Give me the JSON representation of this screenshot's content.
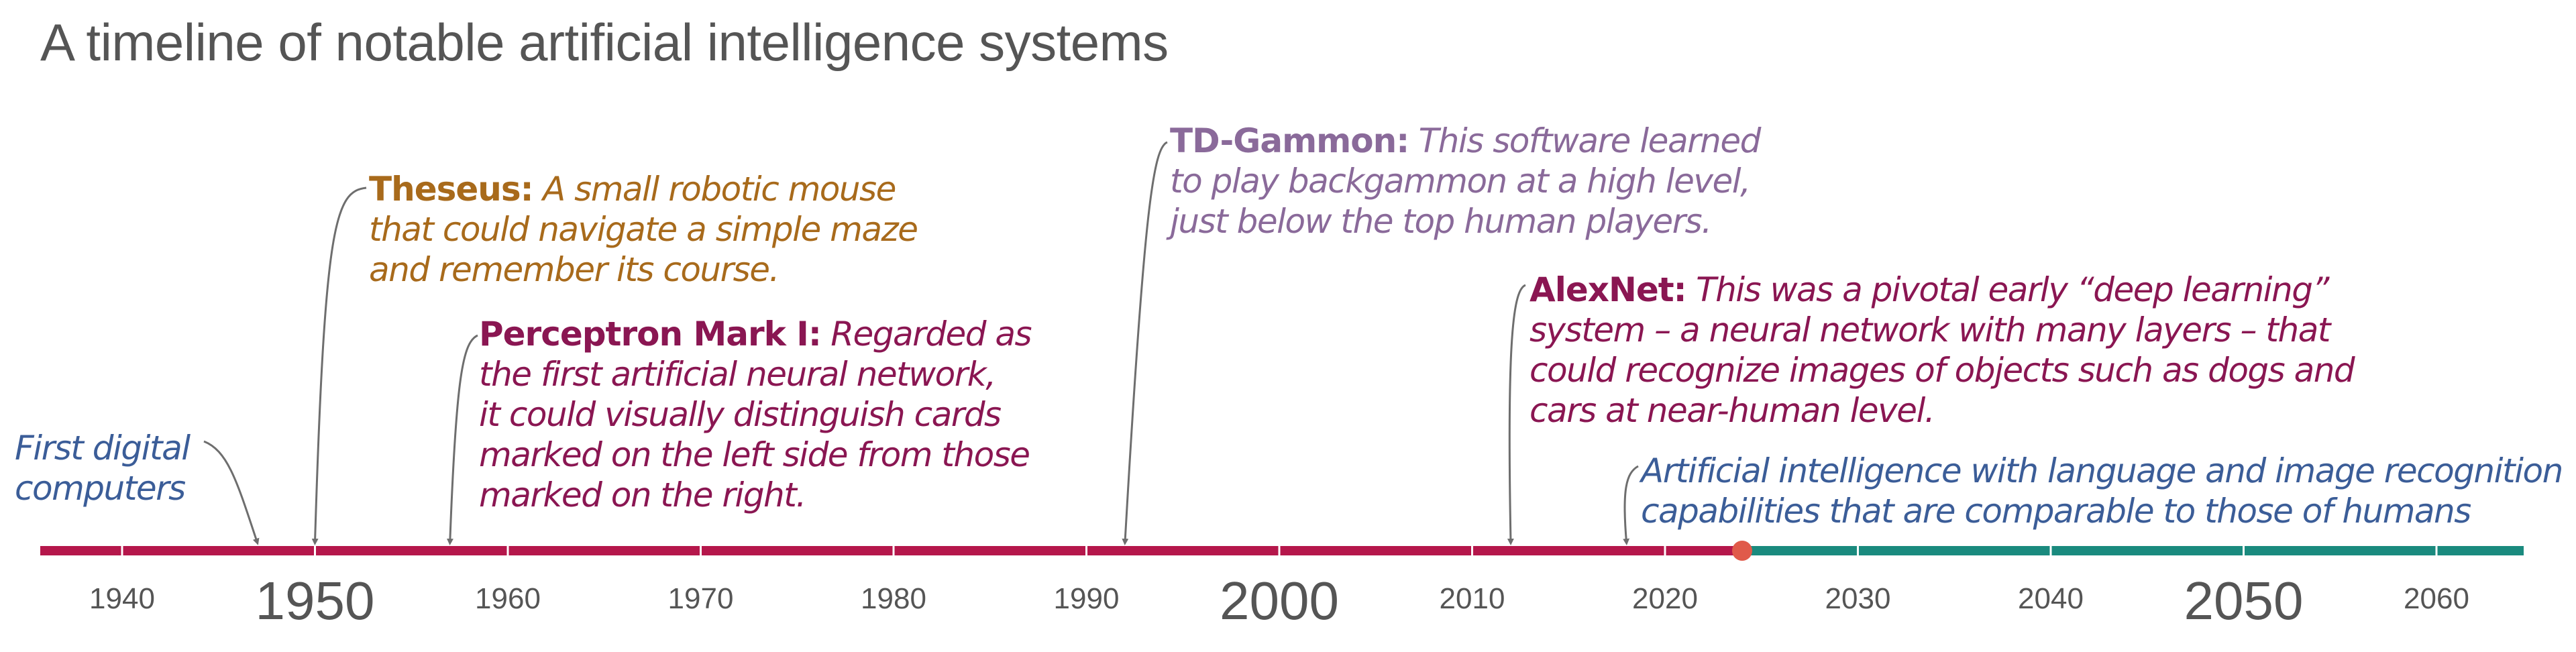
{
  "title": "A timeline of notable artificial intelligence systems",
  "colors": {
    "past": "#b5174b",
    "future": "#1a8a7e",
    "now_marker": "#e05a4a",
    "arrow": "#6e6e6e",
    "theseus": "#a86a1b",
    "perceptron": "#8a1652",
    "td_gammon": "#8a6a9a",
    "alexnet": "#8a1652",
    "blue": "#3b5d98",
    "axis_text": "#555555"
  },
  "timeline": {
    "axis_start_year": 1936,
    "axis_end_year": 2065,
    "now_year": 2024,
    "ticks": [
      {
        "year": 1940,
        "label": "1940",
        "size": "small"
      },
      {
        "year": 1950,
        "label": "1950",
        "size": "big"
      },
      {
        "year": 1960,
        "label": "1960",
        "size": "small"
      },
      {
        "year": 1970,
        "label": "1970",
        "size": "small"
      },
      {
        "year": 1980,
        "label": "1980",
        "size": "small"
      },
      {
        "year": 1990,
        "label": "1990",
        "size": "small"
      },
      {
        "year": 2000,
        "label": "2000",
        "size": "big"
      },
      {
        "year": 2010,
        "label": "2010",
        "size": "small"
      },
      {
        "year": 2020,
        "label": "2020",
        "size": "small"
      },
      {
        "year": 2030,
        "label": "2030",
        "size": "small"
      },
      {
        "year": 2040,
        "label": "2040",
        "size": "small"
      },
      {
        "year": 2050,
        "label": "2050",
        "size": "big"
      },
      {
        "year": 2060,
        "label": "2060",
        "size": "small"
      }
    ]
  },
  "annotations": {
    "first_digital": {
      "year": 1947,
      "lines": [
        "First digital",
        "computers"
      ]
    },
    "theseus": {
      "year": 1950,
      "name": "Theseus:",
      "lines": [
        "A small robotic mouse",
        "that could navigate a simple maze",
        "and remember its course."
      ]
    },
    "perceptron": {
      "year": 1957,
      "name": "Perceptron Mark I:",
      "lines": [
        "Regarded as",
        "the first artificial neural network,",
        "it could visually distinguish cards",
        "marked on the left side from those",
        "marked on the right."
      ]
    },
    "td_gammon": {
      "year": 1992,
      "name": "TD-Gammon:",
      "lines": [
        "This software learned",
        "to play backgammon at a high level,",
        "just below the top human players."
      ]
    },
    "alexnet": {
      "year": 2012,
      "name": "AlexNet:",
      "lines": [
        "This was a pivotal early “deep learning”",
        "system – a neural network with many layers – that",
        "could recognize images of objects such as dogs and",
        "cars at near-human level."
      ]
    },
    "future_ai": {
      "year": 2018,
      "lines": [
        "Artificial intelligence with language and image recognition",
        "capabilities that are comparable to those of humans"
      ]
    }
  }
}
